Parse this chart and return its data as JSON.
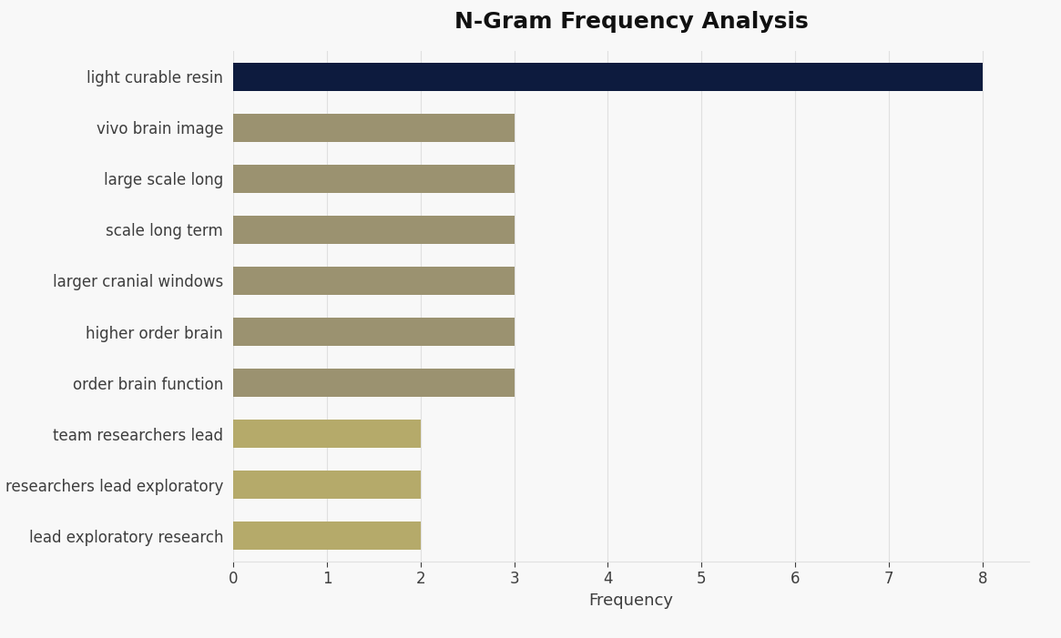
{
  "title": "N-Gram Frequency Analysis",
  "categories": [
    "light curable resin",
    "vivo brain image",
    "large scale long",
    "scale long term",
    "larger cranial windows",
    "higher order brain",
    "order brain function",
    "team researchers lead",
    "researchers lead exploratory",
    "lead exploratory research"
  ],
  "values": [
    8,
    3,
    3,
    3,
    3,
    3,
    3,
    2,
    2,
    2
  ],
  "bar_colors": [
    "#0d1b3e",
    "#9b9270",
    "#9b9270",
    "#9b9270",
    "#9b9270",
    "#9b9270",
    "#9b9270",
    "#b5aa6a",
    "#b5aa6a",
    "#b5aa6a"
  ],
  "xlabel": "Frequency",
  "xlim": [
    0,
    8.5
  ],
  "xticks": [
    0,
    1,
    2,
    3,
    4,
    5,
    6,
    7,
    8
  ],
  "background_color": "#f8f8f8",
  "title_fontsize": 18,
  "label_fontsize": 12,
  "tick_fontsize": 12,
  "bar_height": 0.55,
  "grid_color": "#e0e0e0",
  "label_color": "#3d3d3d",
  "title_color": "#111111"
}
